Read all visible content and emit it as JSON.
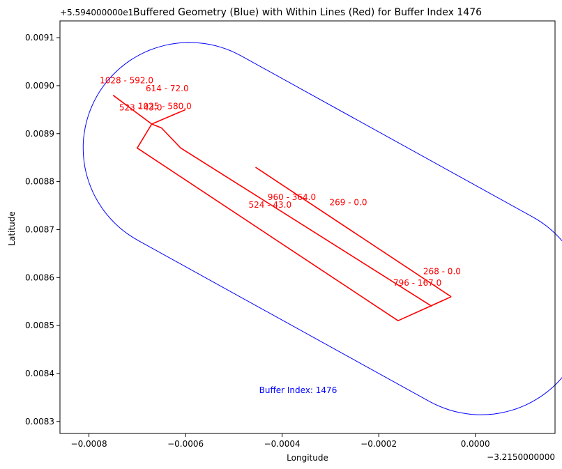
{
  "chart_data": {
    "type": "line",
    "title": "Buffered Geometry (Blue) with Within Lines (Red) for Buffer Index 1476",
    "xlabel": "Longitude",
    "ylabel": "Latitude",
    "x_offset_label": "−3.2150000000",
    "y_offset_label": "+5.594000000e1",
    "xlim": [
      -0.00086,
      0.000165
    ],
    "ylim": [
      0.008275,
      0.009135
    ],
    "x_ticks": [
      -0.0008,
      -0.0006,
      -0.0004,
      -0.0002,
      0.0
    ],
    "x_tick_labels": [
      "−0.0008",
      "−0.0006",
      "−0.0004",
      "−0.0002",
      "0.0000"
    ],
    "y_ticks": [
      0.0083,
      0.0084,
      0.0085,
      0.0086,
      0.0087,
      0.0088,
      0.0089,
      0.009,
      0.0091
    ],
    "y_tick_labels": [
      "0.0083",
      "0.0084",
      "0.0085",
      "0.0086",
      "0.0087",
      "0.0088",
      "0.0089",
      "0.0090",
      "0.0091"
    ],
    "grid": false,
    "buffer": {
      "color": "#0000ff",
      "cap_centers": [
        [
          -0.000592,
          0.00887
        ],
        [
          1.2e-05,
          0.008534
        ]
      ],
      "radius": 0.00022
    },
    "lines": [
      {
        "label": "1028 - 592.0",
        "points": [
          [
            -0.00075,
            0.00898
          ],
          [
            -0.00067,
            0.00892
          ]
        ]
      },
      {
        "label": "1025 - 580.0",
        "points": [
          [
            -0.00067,
            0.00892
          ],
          [
            -0.0006,
            0.00895
          ]
        ]
      },
      {
        "label": "523 - 43.0",
        "points": [
          [
            -0.00067,
            0.00892
          ],
          [
            -0.0007,
            0.00887
          ],
          [
            -0.00016,
            0.00851
          ],
          [
            -5e-05,
            0.00856
          ]
        ]
      },
      {
        "label": "614 - 72.0",
        "points": [
          [
            -0.00067,
            0.00892
          ],
          [
            -0.00065,
            0.008912
          ],
          [
            -0.00061,
            0.00887
          ],
          [
            -9e-05,
            0.00854
          ]
        ]
      },
      {
        "label": "269 - 0.0",
        "points": [
          [
            -0.000455,
            0.00883
          ],
          [
            -5e-05,
            0.00856
          ]
        ]
      }
    ],
    "line_color": "#ff0000",
    "annotations": [
      {
        "text": "1028 - 592.0",
        "x": -0.000722,
        "y": 0.009005
      },
      {
        "text": "614 - 72.0",
        "x": -0.000638,
        "y": 0.008988
      },
      {
        "text": "523 - 43.0",
        "x": -0.000693,
        "y": 0.008948
      },
      {
        "text": "1025 - 580.0",
        "x": -0.000643,
        "y": 0.008951
      },
      {
        "text": "960 - 364.0",
        "x": -0.00038,
        "y": 0.008762
      },
      {
        "text": "269 - 0.0",
        "x": -0.000263,
        "y": 0.008751
      },
      {
        "text": "524 - 43.0",
        "x": -0.000425,
        "y": 0.008746
      },
      {
        "text": "268 - 0.0",
        "x": -6.9e-05,
        "y": 0.008607
      },
      {
        "text": "796 - 167.0",
        "x": -0.00012,
        "y": 0.008583
      }
    ],
    "buffer_label": {
      "text": "Buffer Index: 1476",
      "x": -0.000367,
      "y": 0.008359,
      "color": "#0000ff"
    }
  }
}
